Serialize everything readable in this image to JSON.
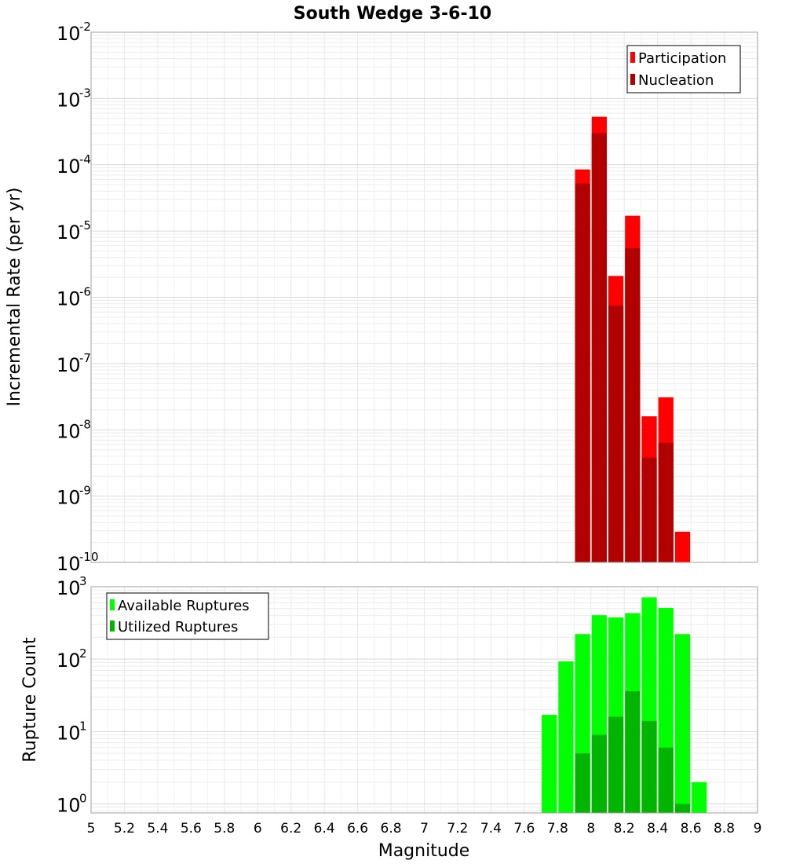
{
  "title": "South Wedge 3-6-10",
  "xlabel": "Magnitude",
  "chart_data": [
    {
      "type": "bar",
      "panel": "top",
      "ylabel": "Incremental Rate (per yr)",
      "yscale": "log",
      "ylim": [
        1e-10,
        0.01
      ],
      "xlim": [
        5,
        9
      ],
      "grid": true,
      "legend_position": "top-right",
      "x": [
        7.95,
        8.05,
        8.15,
        8.25,
        8.35,
        8.45,
        8.55
      ],
      "series": [
        {
          "name": "Participation",
          "color": "#ff0000",
          "values": [
            8.5e-05,
            0.00053,
            2.1e-06,
            1.7e-05,
            1.6e-08,
            3.1e-08,
            2.9e-10
          ]
        },
        {
          "name": "Nucleation",
          "color": "#b20000",
          "values": [
            5.2e-05,
            0.0003,
            7.5e-07,
            5.5e-06,
            3.8e-09,
            6.4e-09,
            null
          ]
        }
      ]
    },
    {
      "type": "bar",
      "panel": "bottom",
      "ylabel": "Rupture Count",
      "yscale": "log",
      "ylim": [
        0.75,
        1000
      ],
      "xlim": [
        5,
        9
      ],
      "grid": true,
      "legend_position": "top-left",
      "x": [
        7.75,
        7.85,
        7.95,
        8.05,
        8.15,
        8.25,
        8.35,
        8.45,
        8.55,
        8.65
      ],
      "series": [
        {
          "name": "Available Ruptures",
          "color": "#00ff00",
          "values": [
            17,
            93,
            222,
            405,
            376,
            431,
            715,
            510,
            222,
            2
          ]
        },
        {
          "name": "Utilized Ruptures",
          "color": "#00b400",
          "values": [
            null,
            null,
            5,
            9,
            16,
            36,
            14,
            6,
            1,
            null
          ]
        }
      ]
    }
  ],
  "xticks": [
    "5",
    "5.2",
    "5.4",
    "5.6",
    "5.8",
    "6",
    "6.2",
    "6.4",
    "6.6",
    "6.8",
    "7",
    "7.2",
    "7.4",
    "7.6",
    "7.8",
    "8",
    "8.2",
    "8.4",
    "8.6",
    "8.8",
    "9"
  ],
  "top_yticks": [
    {
      "base": "10",
      "exp": "-2"
    },
    {
      "base": "10",
      "exp": "-3"
    },
    {
      "base": "10",
      "exp": "-4"
    },
    {
      "base": "10",
      "exp": "-5"
    },
    {
      "base": "10",
      "exp": "-6"
    },
    {
      "base": "10",
      "exp": "-7"
    },
    {
      "base": "10",
      "exp": "-8"
    },
    {
      "base": "10",
      "exp": "-9"
    },
    {
      "base": "10",
      "exp": "-10"
    }
  ],
  "bottom_yticks": [
    {
      "base": "10",
      "exp": "3"
    },
    {
      "base": "10",
      "exp": "2"
    },
    {
      "base": "10",
      "exp": "1"
    },
    {
      "base": "10",
      "exp": "0"
    }
  ]
}
